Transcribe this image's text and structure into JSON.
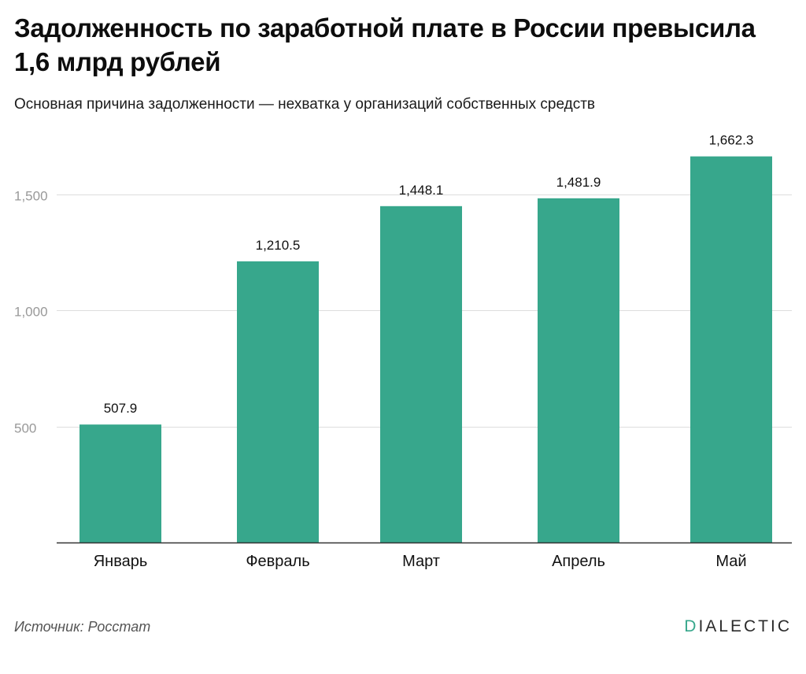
{
  "header": {
    "title": "Задолженность по заработной плате в России превысила 1,6 млрд рублей",
    "subtitle": "Основная причина задолженности — нехватка у организаций собственных средств"
  },
  "footer": {
    "source": "Источник: Росстат",
    "logo_first": "D",
    "logo_rest": "IALECTIC"
  },
  "colors": {
    "bar": "#37a78c",
    "logo_accent": "#37a78c"
  },
  "chart_data": {
    "type": "bar",
    "categories": [
      "Январь",
      "Февраль",
      "Март",
      "Апрель",
      "Май"
    ],
    "values": [
      507.9,
      1210.5,
      1448.1,
      1481.9,
      1662.3
    ],
    "value_labels": [
      "507.9",
      "1,210.5",
      "1,448.1",
      "1,481.9",
      "1,662.3"
    ],
    "yticks": [
      500,
      1000,
      1500
    ],
    "ytick_labels": [
      "500",
      "1,000",
      "1,500"
    ],
    "ylim": [
      0,
      1700
    ],
    "grid": true,
    "xlabel": "",
    "ylabel": ""
  }
}
